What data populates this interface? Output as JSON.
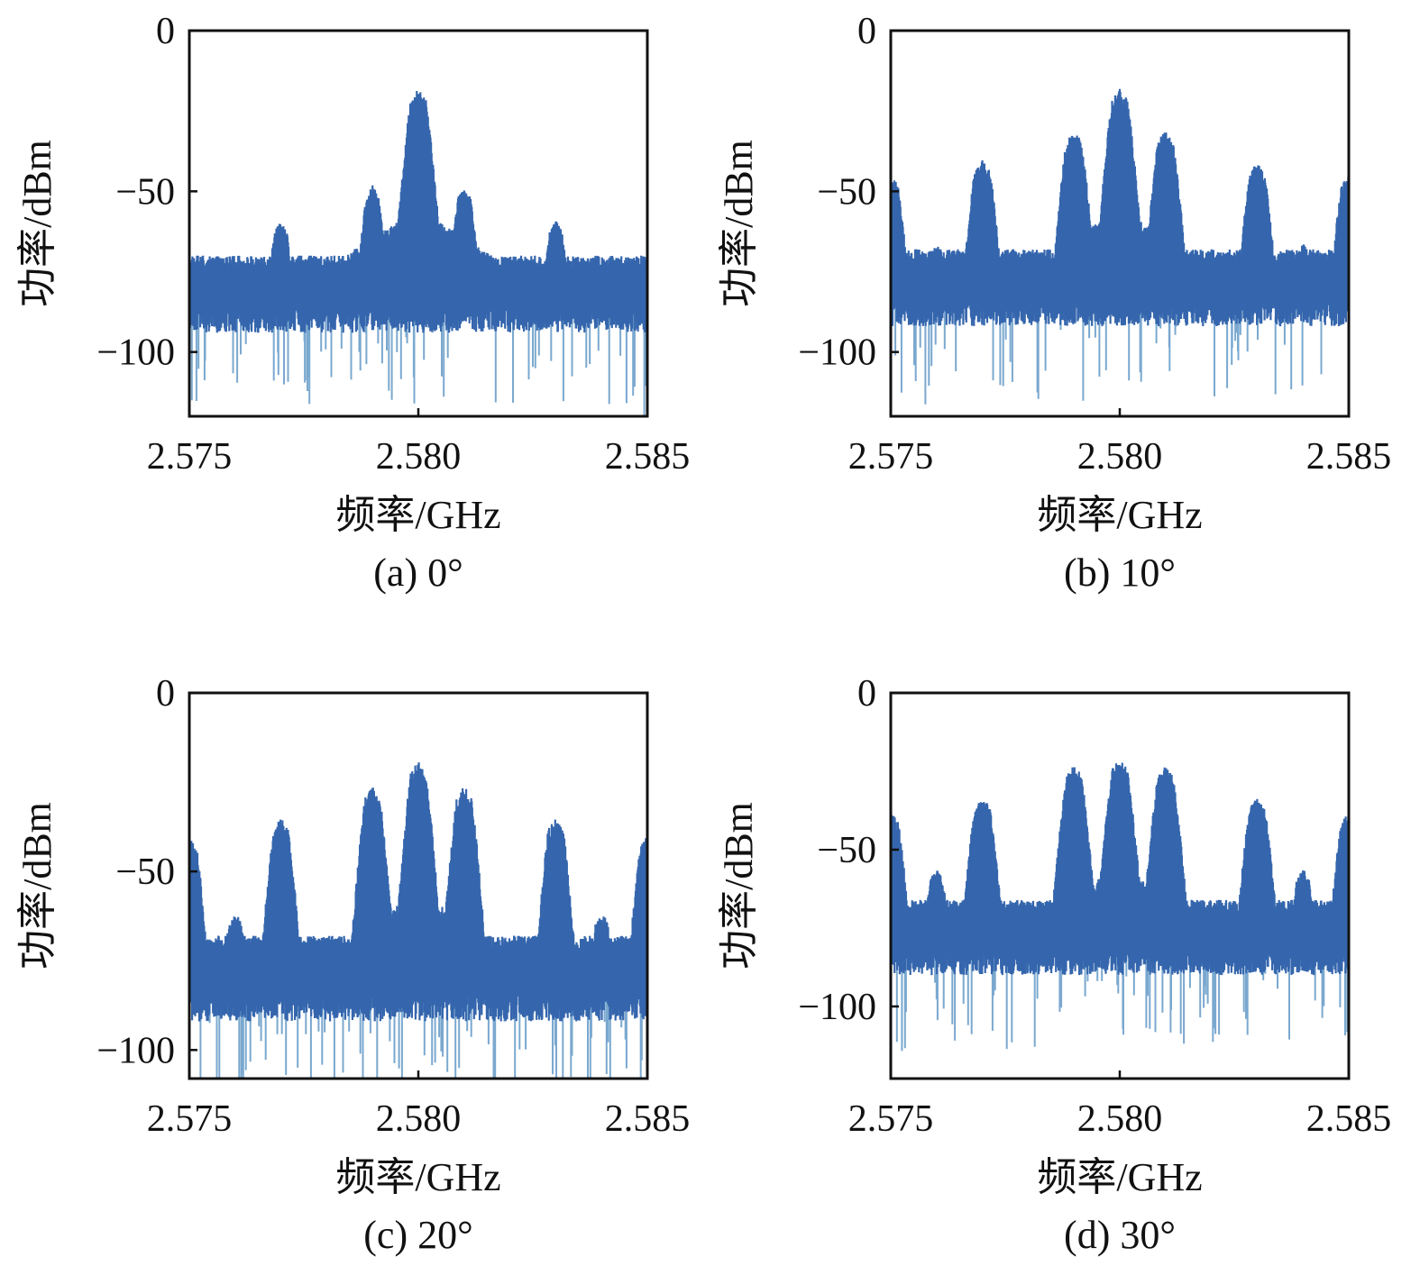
{
  "figure": {
    "colors": {
      "line": "#3566ad",
      "dip": "#7aa8cf",
      "frame": "#111111"
    }
  },
  "chart_data": [
    {
      "type": "line",
      "caption": "(a) 0°",
      "xlabel": "频率/GHz",
      "ylabel": "功率/dBm",
      "xlim": [
        2.575,
        2.585
      ],
      "ylim": [
        -120,
        0
      ],
      "xticks": [
        2.575,
        2.58,
        2.585
      ],
      "xtick_labels": [
        "2.575",
        "2.580",
        "2.585"
      ],
      "yticks": [
        0,
        -50,
        -100
      ],
      "ytick_labels": [
        "0",
        "−50",
        "−100"
      ],
      "noise_floor": {
        "top": -72,
        "bottom": -86
      },
      "peaks": [
        {
          "x": 2.577,
          "y": -61
        },
        {
          "x": 2.579,
          "y": -50
        },
        {
          "x": 2.58,
          "y": -20
        },
        {
          "x": 2.581,
          "y": -50
        },
        {
          "x": 2.583,
          "y": -61
        }
      ]
    },
    {
      "type": "line",
      "caption": "(b) 10°",
      "xlabel": "频率/GHz",
      "ylabel": "功率/dBm",
      "xlim": [
        2.575,
        2.585
      ],
      "ylim": [
        -120,
        0
      ],
      "xticks": [
        2.575,
        2.58,
        2.585
      ],
      "xtick_labels": [
        "2.575",
        "2.580",
        "2.585"
      ],
      "yticks": [
        0,
        -50,
        -100
      ],
      "ytick_labels": [
        "0",
        "−50",
        "−100"
      ],
      "noise_floor": {
        "top": -70,
        "bottom": -84
      },
      "peaks": [
        {
          "x": 2.575,
          "y": -47
        },
        {
          "x": 2.576,
          "y": -68
        },
        {
          "x": 2.577,
          "y": -42
        },
        {
          "x": 2.579,
          "y": -33
        },
        {
          "x": 2.58,
          "y": -20
        },
        {
          "x": 2.581,
          "y": -33
        },
        {
          "x": 2.583,
          "y": -43
        },
        {
          "x": 2.584,
          "y": -68
        },
        {
          "x": 2.585,
          "y": -47
        }
      ]
    },
    {
      "type": "line",
      "caption": "(c) 20°",
      "xlabel": "频率/GHz",
      "ylabel": "功率/dBm",
      "xlim": [
        2.575,
        2.585
      ],
      "ylim": [
        -108,
        0
      ],
      "xticks": [
        2.575,
        2.58,
        2.585
      ],
      "xtick_labels": [
        "2.575",
        "2.580",
        "2.585"
      ],
      "yticks": [
        0,
        -50,
        -100
      ],
      "ytick_labels": [
        "0",
        "−50",
        "−100"
      ],
      "noise_floor": {
        "top": -70,
        "bottom": -84
      },
      "peaks": [
        {
          "x": 2.575,
          "y": -42
        },
        {
          "x": 2.576,
          "y": -63
        },
        {
          "x": 2.577,
          "y": -37
        },
        {
          "x": 2.579,
          "y": -28
        },
        {
          "x": 2.58,
          "y": -21
        },
        {
          "x": 2.581,
          "y": -28
        },
        {
          "x": 2.583,
          "y": -37
        },
        {
          "x": 2.584,
          "y": -63
        },
        {
          "x": 2.585,
          "y": -42
        }
      ]
    },
    {
      "type": "line",
      "caption": "(d) 30°",
      "xlabel": "频率/GHz",
      "ylabel": "功率/dBm",
      "xlim": [
        2.575,
        2.585
      ],
      "ylim": [
        -123,
        0
      ],
      "xticks": [
        2.575,
        2.58,
        2.585
      ],
      "xtick_labels": [
        "2.575",
        "2.580",
        "2.585"
      ],
      "yticks": [
        0,
        -50,
        -100
      ],
      "ytick_labels": [
        "0",
        "−50",
        "−100"
      ],
      "noise_floor": {
        "top": -68,
        "bottom": -82
      },
      "peaks": [
        {
          "x": 2.575,
          "y": -40
        },
        {
          "x": 2.576,
          "y": -58
        },
        {
          "x": 2.577,
          "y": -35
        },
        {
          "x": 2.579,
          "y": -25
        },
        {
          "x": 2.58,
          "y": -23
        },
        {
          "x": 2.581,
          "y": -25
        },
        {
          "x": 2.583,
          "y": -35
        },
        {
          "x": 2.584,
          "y": -58
        },
        {
          "x": 2.585,
          "y": -40
        }
      ]
    }
  ]
}
